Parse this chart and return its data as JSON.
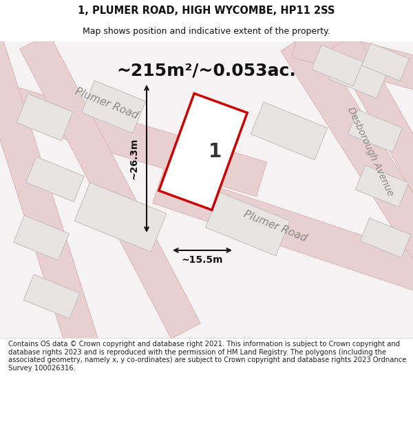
{
  "title_line1": "1, PLUMER ROAD, HIGH WYCOMBE, HP11 2SS",
  "title_line2": "Map shows position and indicative extent of the property.",
  "area_text": "~215m²/~0.053ac.",
  "property_label": "1",
  "dim_width": "~15.5m",
  "dim_height": "~26.3m",
  "footer_text": "Contains OS data © Crown copyright and database right 2021. This information is subject to Crown copyright and database rights 2023 and is reproduced with the permission of HM Land Registry. The polygons (including the associated geometry, namely x, y co-ordinates) are subject to Crown copyright and database rights 2023 Ordnance Survey 100026316.",
  "background_color": "#f0eeee",
  "map_bg_color": "#f5f3f3",
  "road_color": "#e8d0d0",
  "road_border_color": "#e0b8b8",
  "building_fill": "#e8e4e4",
  "building_border": "#c8c0c0",
  "property_outline_color": "#cc0000",
  "dimension_color": "#111111",
  "road_label_color": "#888888",
  "title_color": "#111111",
  "footer_color": "#222222"
}
